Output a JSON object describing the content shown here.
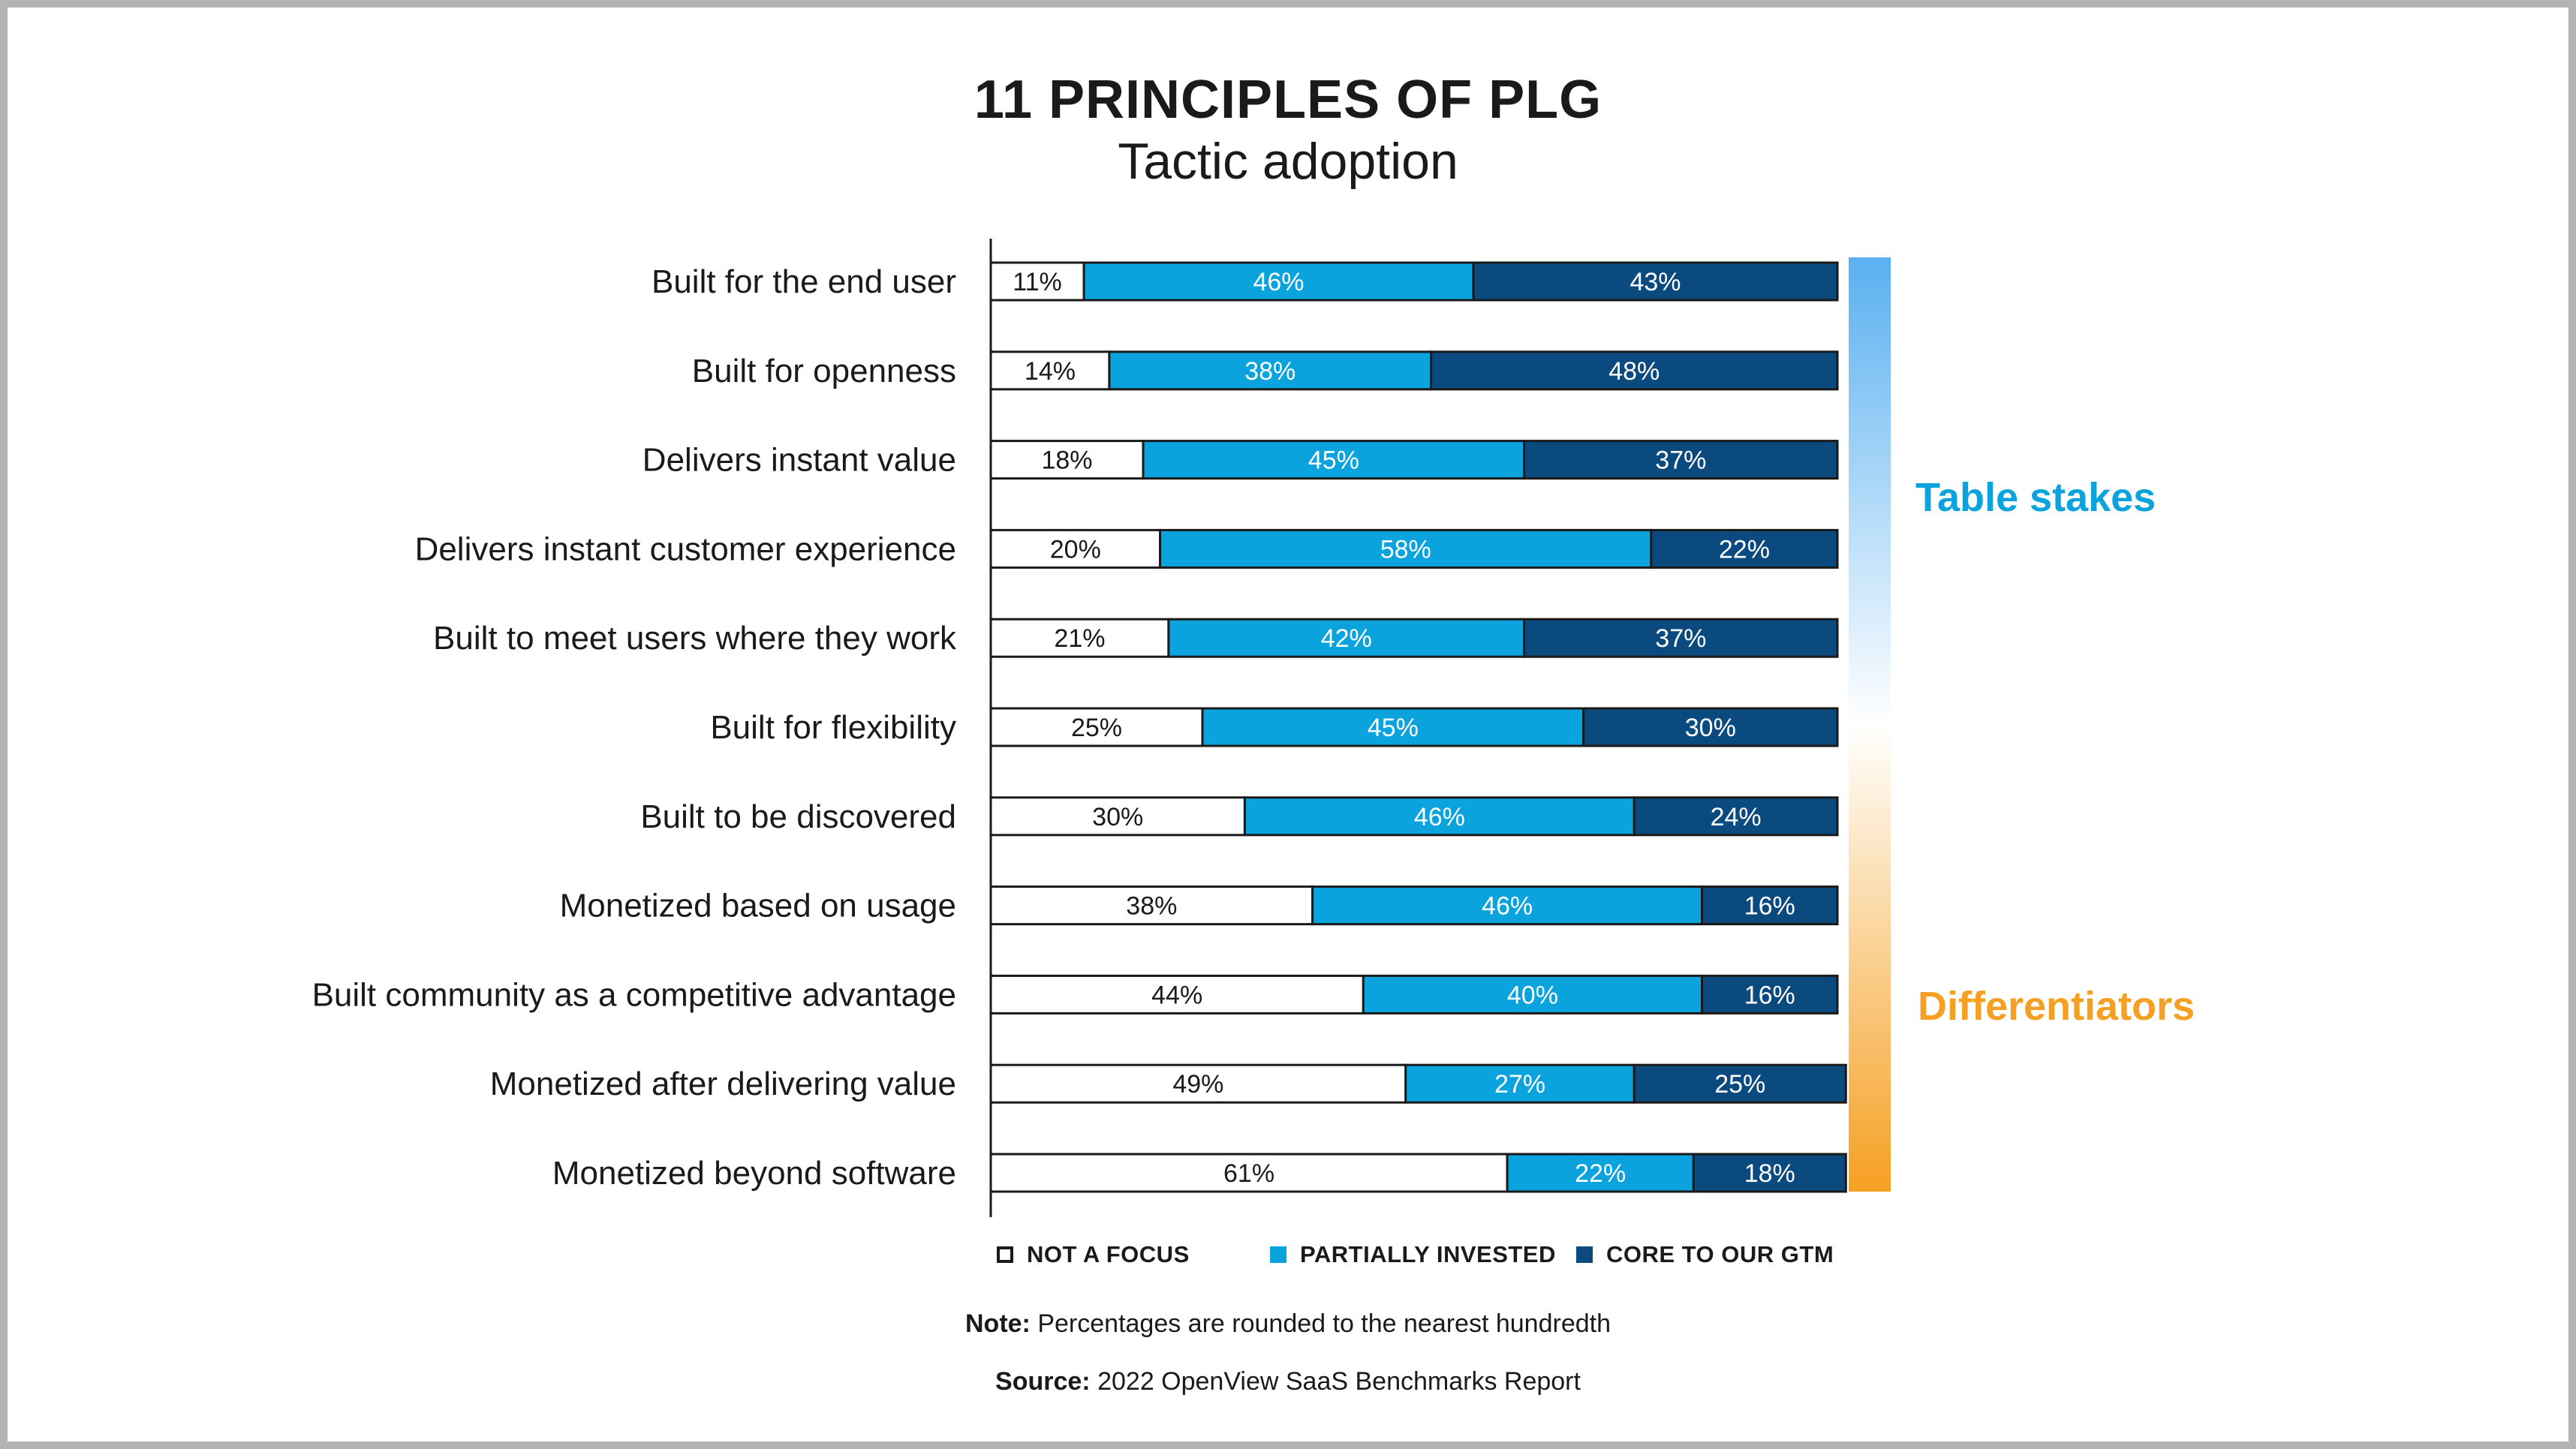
{
  "title": "11 PRINCIPLES OF PLG",
  "subtitle": "Tactic adoption",
  "chart_data": {
    "type": "bar",
    "orientation": "horizontal",
    "stacked": true,
    "categories": [
      "Built for the end user",
      "Built for openness",
      "Delivers instant value",
      "Delivers instant customer experience",
      "Built to meet users where they work",
      "Built for flexibility",
      "Built to be discovered",
      "Monetized based on usage",
      "Built community as a competitive advantage",
      "Monetized after delivering value",
      "Monetized beyond software"
    ],
    "series": [
      {
        "name": "NOT A FOCUS",
        "color": "#ffffff",
        "values": [
          11,
          14,
          18,
          20,
          21,
          25,
          30,
          38,
          44,
          49,
          61
        ]
      },
      {
        "name": "PARTIALLY INVESTED",
        "color": "#0aa3de",
        "values": [
          46,
          38,
          45,
          58,
          42,
          45,
          46,
          46,
          40,
          27,
          22
        ]
      },
      {
        "name": "CORE TO OUR GTM",
        "color": "#0b4a7e",
        "values": [
          43,
          48,
          37,
          22,
          37,
          30,
          24,
          16,
          16,
          25,
          18
        ]
      }
    ],
    "value_suffix": "%",
    "xlim": [
      0,
      100
    ],
    "legend_position": "bottom",
    "grid": false
  },
  "side_scale": {
    "top_label": "Table stakes",
    "top_color": "#0aa3de",
    "bottom_label": "Differentiators",
    "bottom_color": "#f5a023",
    "gradient": [
      "#5ab0f0",
      "#ffffff",
      "#f5a023"
    ]
  },
  "legend": [
    {
      "label": "NOT A FOCUS",
      "color": "#ffffff"
    },
    {
      "label": "PARTIALLY INVESTED",
      "color": "#0aa3de"
    },
    {
      "label": "CORE TO OUR GTM",
      "color": "#0b4a7e"
    }
  ],
  "note": {
    "label": "Note:",
    "text": " Percentages are rounded to the nearest hundredth"
  },
  "source": {
    "label": "Source:",
    "text": " 2022 OpenView SaaS Benchmarks Report"
  }
}
